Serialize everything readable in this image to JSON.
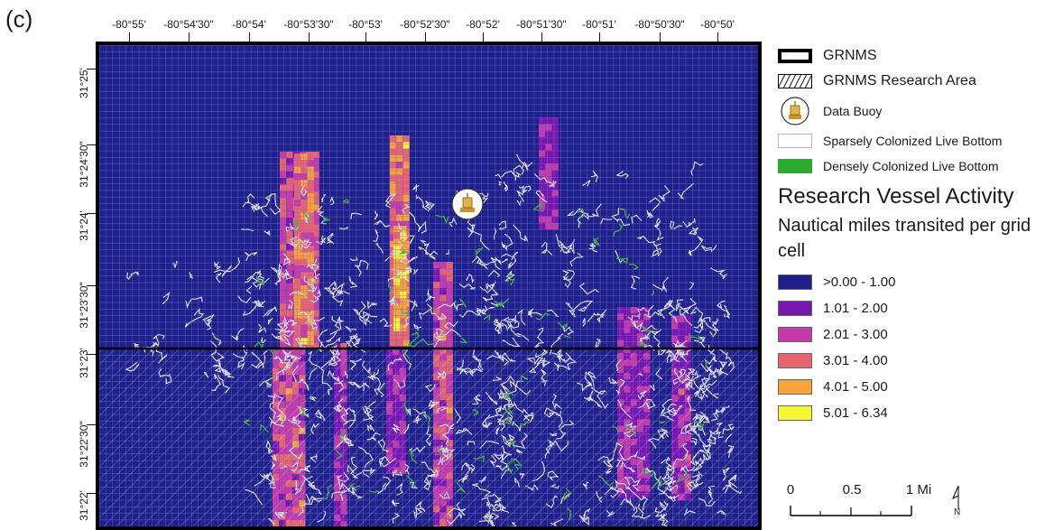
{
  "panel_label": "(c)",
  "map": {
    "longitude_ticks": [
      "-80°55'",
      "-80°54'30\"",
      "-80°54'",
      "-80°53'30\"",
      "-80°53'",
      "-80°52'30\"",
      "-80°52'",
      "-80°51'30\"",
      "-80°51'",
      "-80°50'30\"",
      "-80°50'"
    ],
    "latitude_ticks": [
      "31°25'",
      "31°24'30\"",
      "31°24'",
      "31°23'30\"",
      "31°23'",
      "31°22'30\"",
      "31°22'"
    ],
    "background_color": "#20208a",
    "grid_line_color": "#6f6fd8"
  },
  "legend": {
    "items": [
      {
        "label": "GRNMS",
        "symbol": "outline-box"
      },
      {
        "label": "GRNMS Research Area",
        "symbol": "hatched-box"
      },
      {
        "label": "Data Buoy",
        "symbol": "buoy-icon"
      },
      {
        "label": "Sparsely Colonized Live Bottom",
        "symbol": "white-box"
      },
      {
        "label": "Densely Colonized Live Bottom",
        "symbol": "green-box"
      }
    ],
    "title": "Research Vessel Activity",
    "subtitle": "Nautical miles transited per grid cell",
    "classes": [
      {
        "label": ">0.00 - 1.00",
        "color": "#1f1f8c"
      },
      {
        "label": "1.01 - 2.00",
        "color": "#7a16b0"
      },
      {
        "label": "2.01 - 3.00",
        "color": "#c43aa8"
      },
      {
        "label": "3.01 - 4.00",
        "color": "#e8646e"
      },
      {
        "label": "4.01 - 5.00",
        "color": "#f7a23c"
      },
      {
        "label": "5.01 - 6.34",
        "color": "#f5f536"
      }
    ]
  },
  "scale_bar": {
    "labels": [
      "0",
      "0.5",
      "1 Mi"
    ]
  },
  "north_arrow": {
    "label": "N"
  }
}
